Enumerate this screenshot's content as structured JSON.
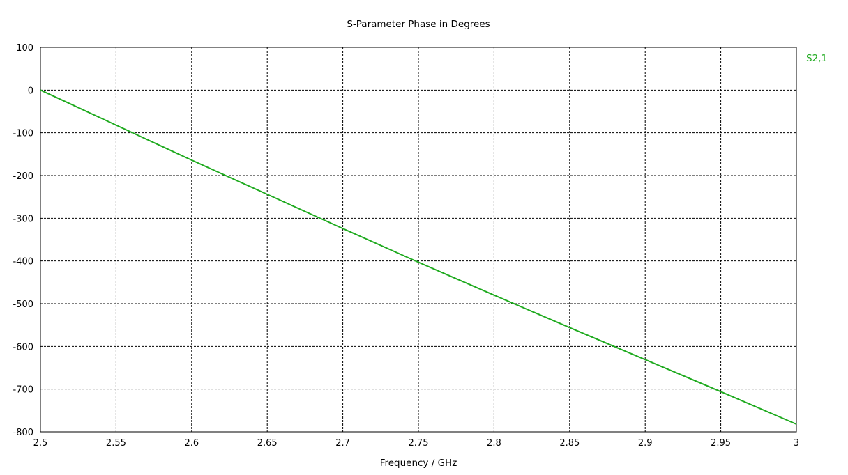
{
  "chart_data": {
    "type": "line",
    "title": "S-Parameter Phase in Degrees",
    "xlabel": "Frequency / GHz",
    "ylabel": "",
    "xlim": [
      2.5,
      3.0
    ],
    "ylim": [
      -800,
      100
    ],
    "x_ticks": [
      2.5,
      2.55,
      2.6,
      2.65,
      2.7,
      2.75,
      2.8,
      2.85,
      2.9,
      2.95,
      3
    ],
    "x_tick_labels": [
      "2.5",
      "2.55",
      "2.6",
      "2.65",
      "2.7",
      "2.75",
      "2.8",
      "2.85",
      "2.9",
      "2.95",
      "3"
    ],
    "y_ticks": [
      100,
      0,
      -100,
      -200,
      -300,
      -400,
      -500,
      -600,
      -700,
      -800
    ],
    "y_tick_labels": [
      "100",
      "0",
      "-100",
      "-200",
      "-300",
      "-400",
      "-500",
      "-600",
      "-700",
      "-800"
    ],
    "grid": true,
    "legend_position": "right",
    "series": [
      {
        "name": "S2,1",
        "color": "#1faa1f",
        "x": [
          2.5,
          2.55,
          2.6,
          2.65,
          2.7,
          2.75,
          2.8,
          2.85,
          2.9,
          2.95,
          3.0
        ],
        "values": [
          0,
          -82,
          -164,
          -244,
          -324,
          -403,
          -480,
          -556,
          -631,
          -706,
          -782
        ]
      }
    ]
  }
}
